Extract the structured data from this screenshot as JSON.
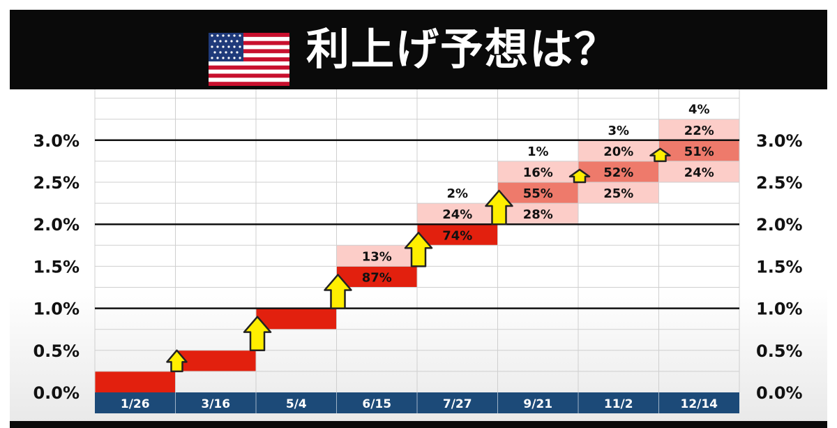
{
  "header": {
    "title": "利上げ予想は？",
    "flag_icon": "us-flag-icon"
  },
  "colors": {
    "header_bg": "#0a0a0a",
    "axis_bar": "#1c4a78",
    "high": "#e2200e",
    "mid": "#ee7a6b",
    "low": "#fccdc8",
    "arrow_fill": "#ffee00",
    "arrow_stroke": "#222222"
  },
  "chart_data": {
    "type": "step-probability",
    "title": "利上げ予想は？",
    "categories": [
      "1/26",
      "3/16",
      "5/4",
      "6/15",
      "7/27",
      "9/21",
      "11/2",
      "12/14"
    ],
    "y_ticks": [
      "0.0%",
      "0.5%",
      "1.0%",
      "1.5%",
      "2.0%",
      "2.5%",
      "3.0%"
    ],
    "ylim": [
      0,
      3.5
    ],
    "y_unit": "%",
    "grid": true,
    "bold_lines_at": [
      1.0,
      2.0,
      3.0
    ],
    "cells": [
      {
        "col": 0,
        "low": 0.0,
        "high": 0.25,
        "prob": "",
        "tone": "high"
      },
      {
        "col": 1,
        "low": 0.25,
        "high": 0.5,
        "prob": "",
        "tone": "high"
      },
      {
        "col": 2,
        "low": 0.75,
        "high": 1.0,
        "prob": "",
        "tone": "high"
      },
      {
        "col": 3,
        "low": 1.25,
        "high": 1.5,
        "prob": "87%",
        "tone": "high"
      },
      {
        "col": 3,
        "low": 1.5,
        "high": 1.75,
        "prob": "13%",
        "tone": "low"
      },
      {
        "col": 4,
        "low": 1.75,
        "high": 2.0,
        "prob": "74%",
        "tone": "high"
      },
      {
        "col": 4,
        "low": 2.0,
        "high": 2.25,
        "prob": "24%",
        "tone": "low"
      },
      {
        "col": 4,
        "low": 2.25,
        "high": 2.5,
        "prob": "2%",
        "tone": "none"
      },
      {
        "col": 5,
        "low": 2.0,
        "high": 2.25,
        "prob": "28%",
        "tone": "low"
      },
      {
        "col": 5,
        "low": 2.25,
        "high": 2.5,
        "prob": "55%",
        "tone": "mid"
      },
      {
        "col": 5,
        "low": 2.5,
        "high": 2.75,
        "prob": "16%",
        "tone": "low"
      },
      {
        "col": 5,
        "low": 2.75,
        "high": 3.0,
        "prob": "1%",
        "tone": "none"
      },
      {
        "col": 6,
        "low": 2.25,
        "high": 2.5,
        "prob": "25%",
        "tone": "low"
      },
      {
        "col": 6,
        "low": 2.5,
        "high": 2.75,
        "prob": "52%",
        "tone": "mid"
      },
      {
        "col": 6,
        "low": 2.75,
        "high": 3.0,
        "prob": "20%",
        "tone": "low"
      },
      {
        "col": 6,
        "low": 3.0,
        "high": 3.25,
        "prob": "3%",
        "tone": "none"
      },
      {
        "col": 7,
        "low": 2.5,
        "high": 2.75,
        "prob": "24%",
        "tone": "low"
      },
      {
        "col": 7,
        "low": 2.75,
        "high": 3.0,
        "prob": "51%",
        "tone": "mid"
      },
      {
        "col": 7,
        "low": 3.0,
        "high": 3.25,
        "prob": "22%",
        "tone": "low"
      },
      {
        "col": 7,
        "low": 3.25,
        "high": 3.5,
        "prob": "4%",
        "tone": "none"
      }
    ],
    "arrows": [
      {
        "col": 1,
        "from": 0.25,
        "to": 0.5
      },
      {
        "col": 2,
        "from": 0.5,
        "to": 0.9
      },
      {
        "col": 3,
        "from": 1.0,
        "to": 1.4
      },
      {
        "col": 4,
        "from": 1.5,
        "to": 1.9
      },
      {
        "col": 5,
        "from": 2.0,
        "to": 2.4
      },
      {
        "col": 6,
        "from": 2.5,
        "to": 2.65
      },
      {
        "col": 7,
        "from": 2.75,
        "to": 2.9
      }
    ]
  }
}
